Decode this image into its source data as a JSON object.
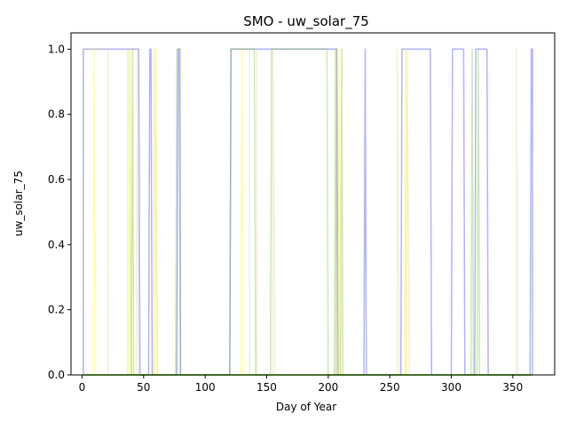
{
  "chart_data": {
    "type": "line",
    "title": "SMO - uw_solar_75",
    "xlabel": "Day of Year",
    "ylabel": "uw_solar_75",
    "xlim": [
      -9,
      384
    ],
    "ylim": [
      0.0,
      1.05
    ],
    "xticks": [
      0,
      50,
      100,
      150,
      200,
      250,
      300,
      350
    ],
    "xtick_labels": [
      "0",
      "50",
      "100",
      "150",
      "200",
      "250",
      "300",
      "350"
    ],
    "yticks": [
      0.0,
      0.2,
      0.4,
      0.6,
      0.8,
      1.0
    ],
    "ytick_labels": [
      "0.0",
      "0.2",
      "0.4",
      "0.6",
      "0.8",
      "1.0"
    ],
    "grid": false,
    "series": [
      {
        "color": "#0000ff",
        "alpha": 0.3,
        "points": [
          [
            1,
            0
          ],
          [
            1,
            1
          ],
          [
            21,
            1
          ],
          [
            22,
            1
          ],
          [
            45,
            1
          ],
          [
            46,
            1
          ],
          [
            47,
            0
          ],
          [
            48,
            0
          ],
          [
            54,
            0
          ],
          [
            55,
            1
          ],
          [
            56,
            1
          ],
          [
            57,
            0
          ],
          [
            77,
            0
          ],
          [
            78,
            1
          ],
          [
            79,
            1
          ],
          [
            80,
            0
          ],
          [
            120,
            0
          ],
          [
            121,
            1
          ],
          [
            139,
            1
          ],
          [
            140,
            1
          ],
          [
            141,
            1
          ],
          [
            153,
            1
          ],
          [
            154,
            1
          ],
          [
            155,
            1
          ],
          [
            199,
            1
          ],
          [
            200,
            1
          ],
          [
            206,
            1
          ],
          [
            207,
            1
          ],
          [
            208,
            0
          ],
          [
            229,
            0
          ],
          [
            230,
            1
          ],
          [
            231,
            0
          ],
          [
            259,
            0
          ],
          [
            260,
            1
          ],
          [
            283,
            1
          ],
          [
            284,
            0
          ],
          [
            300,
            0
          ],
          [
            301,
            1
          ],
          [
            310,
            1
          ],
          [
            311,
            0
          ],
          [
            319,
            0
          ],
          [
            320,
            1
          ],
          [
            329,
            1
          ],
          [
            330,
            0
          ],
          [
            364,
            0
          ],
          [
            365,
            1
          ],
          [
            366,
            1
          ],
          [
            366,
            0
          ]
        ]
      },
      {
        "color": "#c8c864",
        "alpha": 0.25,
        "points": [
          [
            1,
            0
          ],
          [
            1,
            1
          ],
          [
            21,
            1
          ],
          [
            21,
            0
          ],
          [
            37,
            0
          ],
          [
            37,
            1
          ],
          [
            38,
            1
          ],
          [
            40,
            0
          ],
          [
            44,
            0
          ],
          [
            45,
            1
          ],
          [
            46,
            0
          ],
          [
            58,
            0
          ],
          [
            59,
            1
          ],
          [
            61,
            0
          ],
          [
            136,
            0
          ],
          [
            136,
            1
          ],
          [
            142,
            1
          ],
          [
            142,
            0
          ],
          [
            155,
            0
          ],
          [
            155,
            1
          ],
          [
            157,
            0
          ],
          [
            206,
            0
          ],
          [
            207,
            1
          ],
          [
            209,
            0
          ],
          [
            256,
            0
          ],
          [
            256,
            1
          ],
          [
            258,
            0
          ],
          [
            263,
            0
          ],
          [
            264,
            1
          ],
          [
            266,
            0
          ],
          [
            353,
            0
          ],
          [
            353,
            1
          ],
          [
            354,
            0
          ],
          [
            366,
            0
          ]
        ]
      },
      {
        "color": "#ffff00",
        "alpha": 0.35,
        "points": [
          [
            1,
            0
          ],
          [
            9,
            0
          ],
          [
            10,
            1
          ],
          [
            11,
            0
          ],
          [
            38,
            0
          ],
          [
            39,
            1
          ],
          [
            40,
            0
          ],
          [
            59,
            0
          ],
          [
            60,
            1
          ],
          [
            61,
            0
          ],
          [
            129,
            0
          ],
          [
            130,
            1
          ],
          [
            131,
            0
          ],
          [
            208,
            0
          ],
          [
            209,
            1
          ],
          [
            210,
            0
          ],
          [
            262,
            0
          ],
          [
            263,
            1
          ],
          [
            264,
            0
          ],
          [
            366,
            0
          ]
        ]
      },
      {
        "color": "#64b400",
        "alpha": 0.3,
        "points": [
          [
            1,
            0
          ],
          [
            40,
            0
          ],
          [
            41,
            1
          ],
          [
            42,
            0
          ],
          [
            76,
            0
          ],
          [
            77,
            1
          ],
          [
            80,
            1
          ],
          [
            80,
            0
          ],
          [
            120,
            0
          ],
          [
            121,
            1
          ],
          [
            140,
            1
          ],
          [
            141,
            0
          ],
          [
            153,
            0
          ],
          [
            154,
            1
          ],
          [
            199,
            1
          ],
          [
            200,
            0
          ],
          [
            205,
            0
          ],
          [
            206,
            1
          ],
          [
            207,
            0
          ],
          [
            210,
            0
          ],
          [
            211,
            1
          ],
          [
            212,
            0
          ],
          [
            316,
            0
          ],
          [
            317,
            1
          ],
          [
            318,
            0
          ],
          [
            321,
            0
          ],
          [
            322,
            1
          ],
          [
            323,
            0
          ],
          [
            366,
            0
          ]
        ]
      },
      {
        "color": "#32c800",
        "alpha": 0.9,
        "points": [
          [
            1,
            0
          ],
          [
            366,
            0
          ]
        ]
      }
    ]
  }
}
